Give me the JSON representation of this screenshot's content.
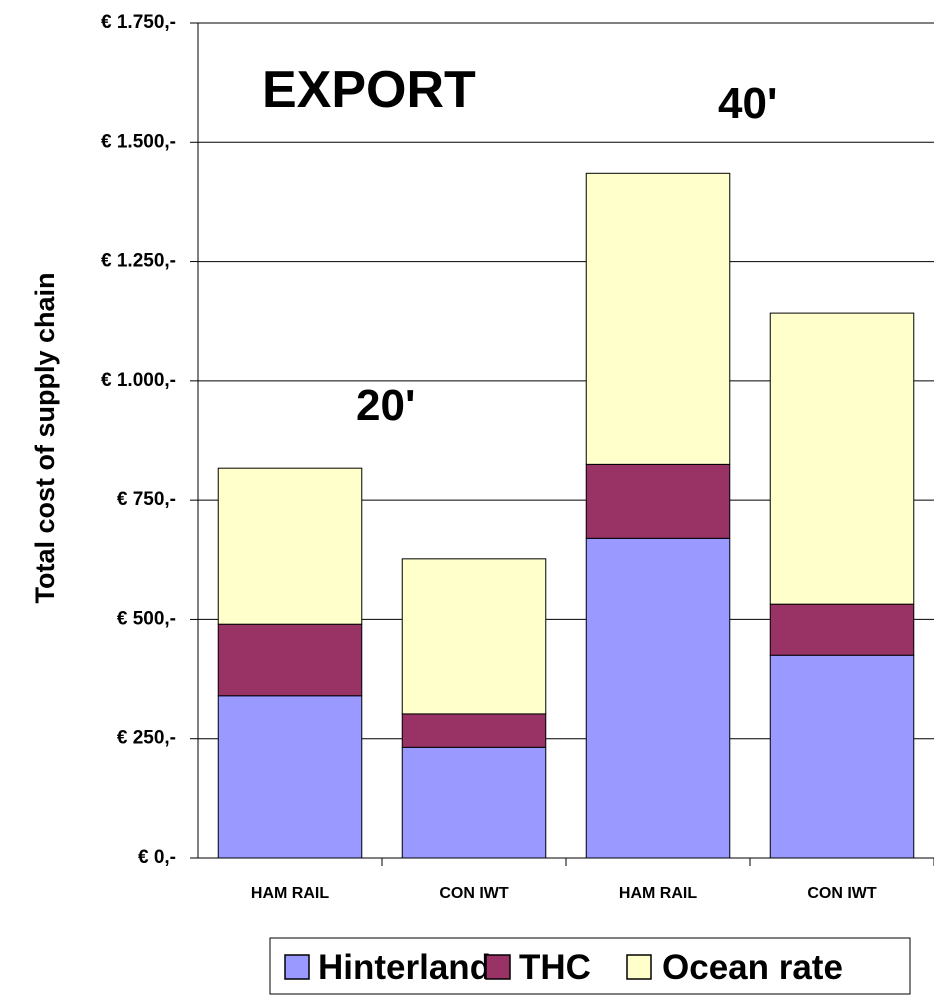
{
  "chart_data": {
    "type": "bar",
    "stacked": true,
    "categories": [
      "HAM RAIL",
      "CON IWT",
      "HAM RAIL",
      "CON IWT"
    ],
    "series": [
      {
        "name": "Hinterland",
        "values": [
          340,
          232,
          670,
          425
        ],
        "color": "#9999ff"
      },
      {
        "name": "THC",
        "values": [
          150,
          70,
          155,
          107
        ],
        "color": "#993366"
      },
      {
        "name": "Ocean rate",
        "values": [
          327,
          325,
          610,
          610
        ],
        "color": "#ffffcc"
      }
    ],
    "ylabel": "Total cost of supply chain",
    "ylim": [
      0,
      1750
    ],
    "yticks": [
      0,
      250,
      500,
      750,
      1000,
      1250,
      1500,
      1750
    ],
    "ytick_labels": [
      "€ 0,-",
      "€ 250,-",
      "€ 500,-",
      "€ 750,-",
      "€ 1.000,-",
      "€ 1.250,-",
      "€ 1.500,-",
      "€ 1.750,-"
    ],
    "grid": true,
    "legend_position": "bottom-right",
    "annotations": [
      "EXPORT",
      "20'",
      "40'"
    ]
  }
}
